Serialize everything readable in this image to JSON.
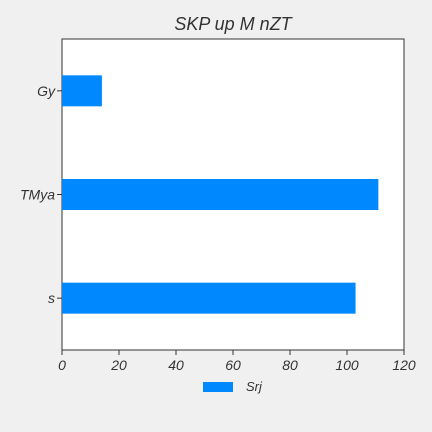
{
  "chart_data": {
    "type": "bar",
    "orientation": "horizontal",
    "title": "SKP   up M nZT",
    "xlabel": "",
    "ylabel": "",
    "categories": [
      "Gy",
      "TMya",
      "s"
    ],
    "series": [
      {
        "name": "Srj",
        "values": [
          14,
          111,
          103
        ],
        "color": "#0088ff"
      }
    ],
    "xlim": [
      0,
      120
    ],
    "xticks": [
      0,
      20,
      40,
      60,
      80,
      100,
      120
    ],
    "grid": false,
    "legend_position": "bottom-center"
  }
}
